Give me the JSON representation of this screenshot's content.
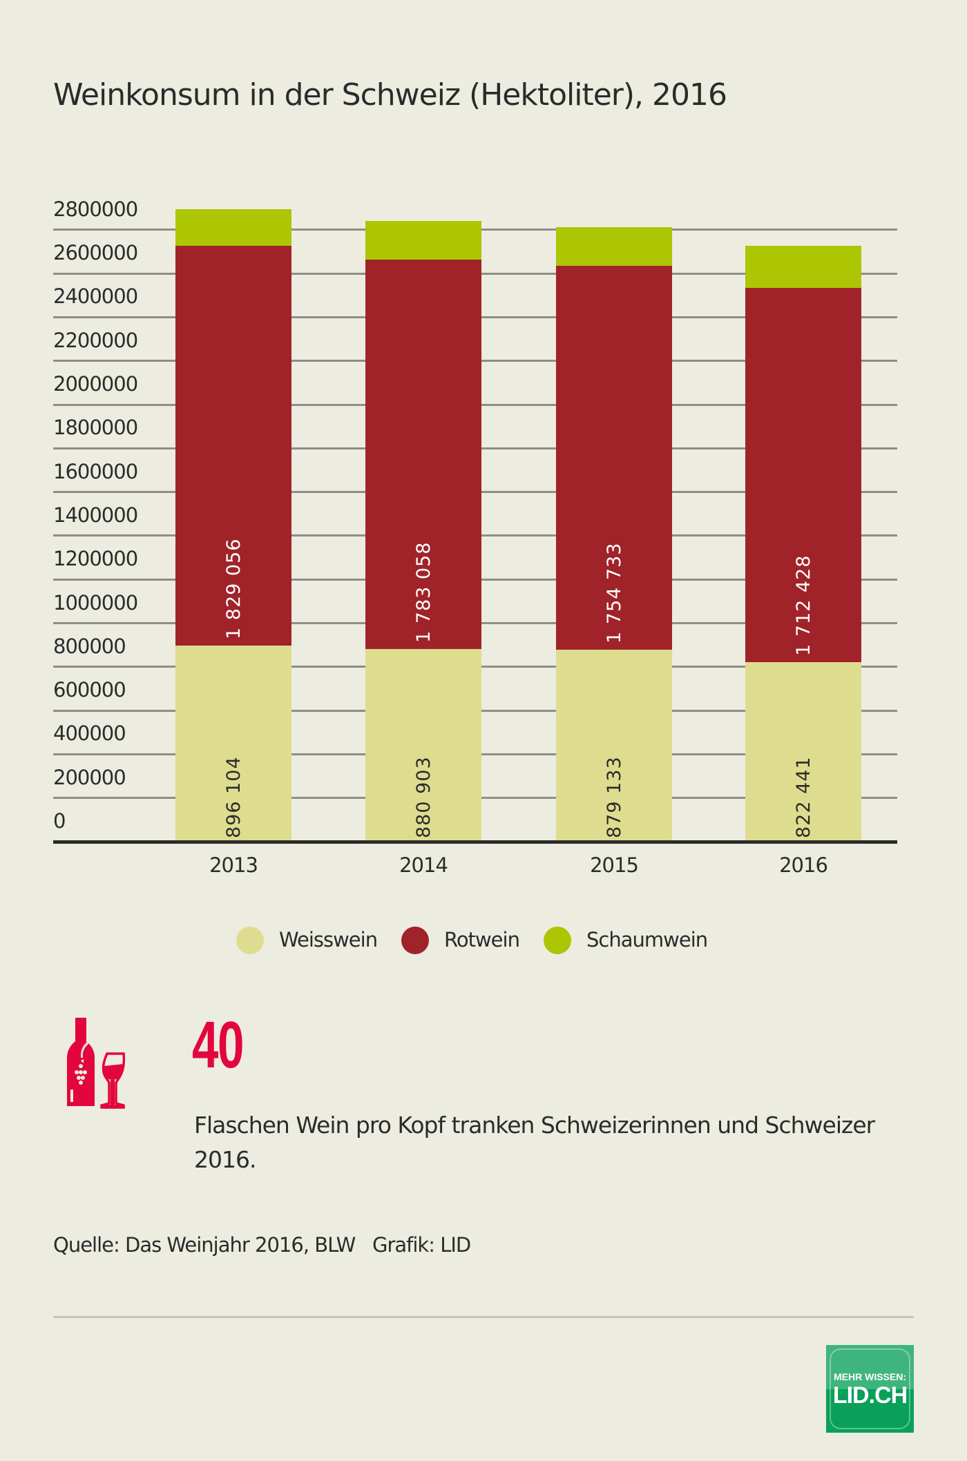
{
  "title": "Weinkonsum in der Schweiz (Hektoliter), 2016",
  "colors": {
    "background": "#edece1",
    "weisswein": "#dedd8f",
    "rotwein": "#a0232a",
    "schaumwein": "#acc603",
    "accent": "#e2063c",
    "logo_green": "#0aa05a"
  },
  "y_axis": {
    "ticks": [
      "0",
      "200000",
      "400000",
      "600000",
      "800000",
      "1000000",
      "1200000",
      "1400000",
      "1600000",
      "1800000",
      "2000000",
      "2200000",
      "2400000",
      "2600000",
      "2800000"
    ]
  },
  "x_axis": {
    "ticks": [
      "2013",
      "2014",
      "2015",
      "2016"
    ]
  },
  "bars": [
    {
      "year": "2013",
      "weisswein_label": "896 104",
      "rotwein_label": "1 829 056"
    },
    {
      "year": "2014",
      "weisswein_label": "880 903",
      "rotwein_label": "1 783 058"
    },
    {
      "year": "2015",
      "weisswein_label": "879 133",
      "rotwein_label": "1 754 733"
    },
    {
      "year": "2016",
      "weisswein_label": "822 441",
      "rotwein_label": "1 712 428"
    }
  ],
  "legend": [
    {
      "label": "Weisswein",
      "color": "#dedd8f"
    },
    {
      "label": "Rotwein",
      "color": "#a0232a"
    },
    {
      "label": "Schaumwein",
      "color": "#acc603"
    }
  ],
  "stat": {
    "icon": "wine-bottle-and-glass-icon",
    "number": "40",
    "text": "Flaschen Wein pro Kopf tranken Schweizerinnen und Schweizer 2016."
  },
  "source": "Quelle: Das Weinjahr 2016, BLW   Grafik: LID",
  "logo": {
    "line1": "MEHR WISSEN:",
    "line2": "LID.CH"
  },
  "chart_data": {
    "type": "bar",
    "stacked": true,
    "title": "Weinkonsum in der Schweiz (Hektoliter), 2016",
    "xlabel": "",
    "ylabel": "Hektoliter",
    "categories": [
      "2013",
      "2014",
      "2015",
      "2016"
    ],
    "series": [
      {
        "name": "Weisswein",
        "color": "#dedd8f",
        "values": [
          896104,
          880903,
          879133,
          822441
        ]
      },
      {
        "name": "Rotwein",
        "color": "#a0232a",
        "values": [
          1829056,
          1783058,
          1754733,
          1712428
        ]
      },
      {
        "name": "Schaumwein",
        "color": "#acc603",
        "values": [
          170000,
          177000,
          177000,
          193000
        ],
        "note": "estimated from bar heights, not labeled"
      }
    ],
    "ylim": [
      0,
      2800000
    ],
    "yticks": [
      0,
      200000,
      400000,
      600000,
      800000,
      1000000,
      1200000,
      1400000,
      1600000,
      1800000,
      2000000,
      2200000,
      2400000,
      2600000,
      2800000
    ],
    "grid": true,
    "legend_position": "bottom"
  }
}
